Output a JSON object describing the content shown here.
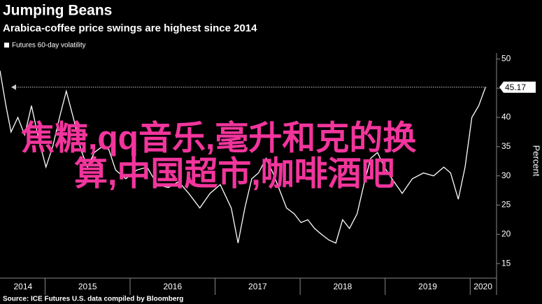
{
  "chart_data": {
    "type": "line",
    "title": "Jumping Beans",
    "subtitle": "Arabica-coffee price swings are highest since 2014",
    "source": "Source: ICE Futures U.S. data compiled by Bloomberg",
    "y_axis_label": "Percent",
    "overlay_text": [
      "焦糖,qq音乐,毫升和克的换",
      "算,中国超市,咖啡酒吧"
    ],
    "x": [
      2014.47,
      2014.54,
      2014.6,
      2014.68,
      2014.76,
      2014.84,
      2014.93,
      2015.01,
      2015.09,
      2015.17,
      2015.25,
      2015.34,
      2015.42,
      2015.5,
      2015.58,
      2015.67,
      2015.75,
      2015.83,
      2015.95,
      2016.08,
      2016.2,
      2016.32,
      2016.45,
      2016.57,
      2016.69,
      2016.82,
      2016.94,
      2017.06,
      2017.19,
      2017.27,
      2017.35,
      2017.43,
      2017.51,
      2017.6,
      2017.68,
      2017.76,
      2017.84,
      2017.93,
      2018.01,
      2018.09,
      2018.17,
      2018.25,
      2018.34,
      2018.42,
      2018.5,
      2018.58,
      2018.67,
      2018.75,
      2018.83,
      2018.91,
      2018.99,
      2019.08,
      2019.2,
      2019.32,
      2019.45,
      2019.57,
      2019.69,
      2019.77,
      2019.86,
      2019.94,
      2020.02,
      2020.1,
      2020.18
    ],
    "series": [
      {
        "name": "Futures 60-day volatility",
        "color": "#ffffff",
        "values": [
          48,
          42,
          37.5,
          40,
          37,
          42,
          36,
          31.5,
          35,
          40,
          44.5,
          39.5,
          34.5,
          31.5,
          34,
          35,
          34.5,
          31,
          29.5,
          31,
          31.5,
          28.5,
          28,
          29,
          27,
          24.5,
          27,
          28.5,
          24.5,
          18.5,
          24.5,
          29.5,
          30.5,
          33,
          30.5,
          27.5,
          24.5,
          23.5,
          22,
          22.5,
          21,
          20,
          19,
          18.5,
          22.5,
          21,
          23.5,
          28.5,
          33,
          34,
          31.5,
          29.5,
          27,
          29.5,
          30.5,
          30,
          31.5,
          30.5,
          26,
          31.5,
          40,
          42,
          45.17
        ]
      }
    ],
    "last_value": 45.17,
    "xlim": [
      2014.47,
      2020.31
    ],
    "xticks": [
      {
        "value": 2014.74,
        "label": "2014"
      },
      {
        "value": 2015.5,
        "label": "2015"
      },
      {
        "value": 2016.5,
        "label": "2016"
      },
      {
        "value": 2017.5,
        "label": "2017"
      },
      {
        "value": 2018.5,
        "label": "2018"
      },
      {
        "value": 2019.5,
        "label": "2019"
      },
      {
        "value": 2020.15,
        "label": "2020"
      }
    ],
    "x_separators": [
      2015,
      2016,
      2017,
      2018,
      2019,
      2020
    ],
    "ylim": [
      12.5,
      51
    ],
    "yticks": [
      15,
      20,
      25,
      30,
      35,
      40,
      45,
      50
    ]
  }
}
